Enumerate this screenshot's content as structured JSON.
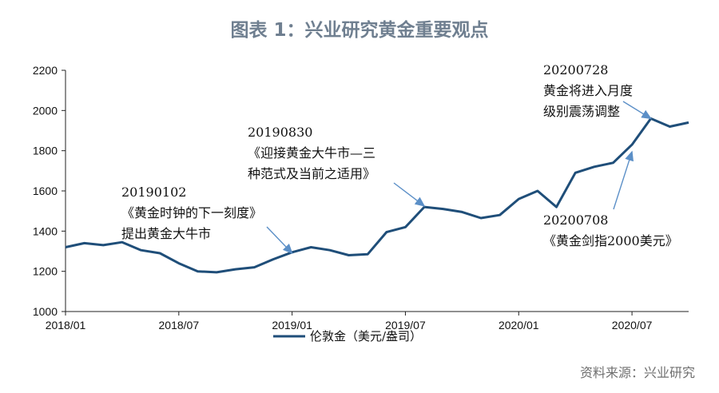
{
  "title": "图表 1：兴业研究黄金重要观点",
  "source": "资料来源：兴业研究",
  "colors": {
    "series": "#1f4e79",
    "arrow": "#5b8fc7",
    "axis": "#222222"
  },
  "chart_data": {
    "type": "line",
    "ylim": [
      1000,
      2200
    ],
    "yticks": [
      1000,
      1200,
      1400,
      1600,
      1800,
      2000,
      2200
    ],
    "xlim": [
      "2018/01",
      "2020/10"
    ],
    "xticks": [
      "2018/01",
      "2018/07",
      "2019/01",
      "2019/07",
      "2020/01",
      "2020/07"
    ],
    "grid": false,
    "legend_position": "bottom-center",
    "series": [
      {
        "name": "伦敦金（美元/盎司）",
        "points": [
          [
            "2018/01",
            1320
          ],
          [
            "2018/02",
            1340
          ],
          [
            "2018/03",
            1330
          ],
          [
            "2018/04",
            1345
          ],
          [
            "2018/05",
            1305
          ],
          [
            "2018/06",
            1290
          ],
          [
            "2018/07",
            1240
          ],
          [
            "2018/08",
            1200
          ],
          [
            "2018/09",
            1195
          ],
          [
            "2018/10",
            1210
          ],
          [
            "2018/11",
            1220
          ],
          [
            "2018/12",
            1260
          ],
          [
            "2019/01",
            1295
          ],
          [
            "2019/02",
            1320
          ],
          [
            "2019/03",
            1305
          ],
          [
            "2019/04",
            1280
          ],
          [
            "2019/05",
            1285
          ],
          [
            "2019/06",
            1395
          ],
          [
            "2019/07",
            1420
          ],
          [
            "2019/08",
            1520
          ],
          [
            "2019/09",
            1510
          ],
          [
            "2019/10",
            1495
          ],
          [
            "2019/11",
            1465
          ],
          [
            "2019/12",
            1480
          ],
          [
            "2020/01",
            1560
          ],
          [
            "2020/02",
            1600
          ],
          [
            "2020/03",
            1520
          ],
          [
            "2020/04",
            1690
          ],
          [
            "2020/05",
            1720
          ],
          [
            "2020/06",
            1740
          ],
          [
            "2020/07",
            1830
          ],
          [
            "2020/08",
            1960
          ],
          [
            "2020/09",
            1920
          ],
          [
            "2020/10",
            1940
          ]
        ]
      }
    ],
    "annotations": [
      {
        "date_label": "20190102",
        "lines": [
          "《黄金时钟的下一刻度》",
          "提出黄金大牛市"
        ],
        "points_to": [
          "2019/01",
          1290
        ]
      },
      {
        "date_label": "20190830",
        "lines": [
          "《迎接黄金大牛市—三",
          "种范式及当前之适用》"
        ],
        "points_to": [
          "2019/08",
          1525
        ]
      },
      {
        "date_label": "20200708",
        "lines": [
          "《黄金剑指2000美元》"
        ],
        "points_to": [
          "2020/07",
          1795
        ]
      },
      {
        "date_label": "20200728",
        "lines": [
          "黄金将进入月度",
          "级别震荡调整"
        ],
        "points_to": [
          "2020/08",
          1960
        ]
      }
    ]
  }
}
